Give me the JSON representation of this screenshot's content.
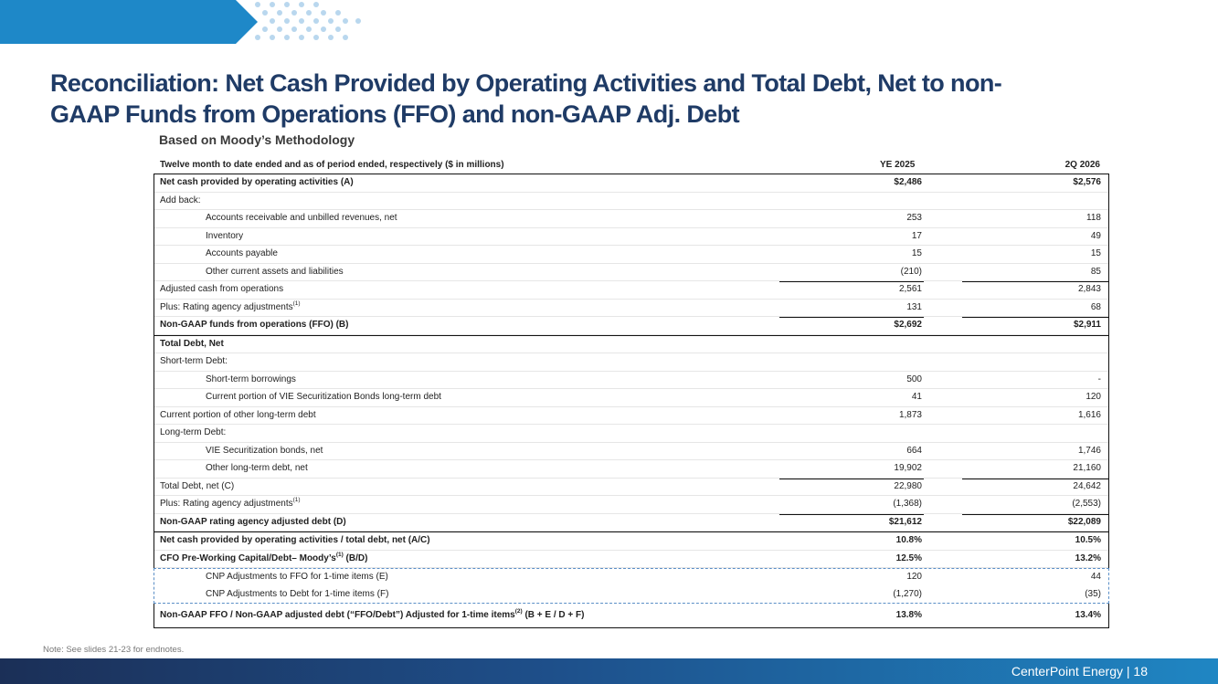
{
  "slide": {
    "title": "Reconciliation: Net Cash Provided by Operating Activities and Total Debt, Net to non-GAAP Funds from Operations (FFO) and non-GAAP Adj. Debt",
    "subtitle": "Based on Moody’s Methodology",
    "note": "Note: See slides 21-23 for endnotes.",
    "footer": "CenterPoint Energy | 18"
  },
  "colors": {
    "title": "#1f3b66",
    "banner": "#1e88c8",
    "footer_start": "#1b2f57",
    "footer_end": "#1f86c3",
    "dash": "#5b8fc7"
  },
  "table": {
    "header": {
      "label": "Twelve month to date ended and as of period ended, respectively ($ in millions)",
      "col1": "YE 2025",
      "col2": "2Q 2026"
    },
    "section1": [
      {
        "label": "Net cash provided by operating activities (A)",
        "v1": "$2,486",
        "v2": "$2,576"
      },
      {
        "label": "Add back:",
        "v1": "",
        "v2": ""
      },
      {
        "label": "Accounts receivable and unbilled revenues, net",
        "v1": "253",
        "v2": "118"
      },
      {
        "label": "Inventory",
        "v1": "17",
        "v2": "49"
      },
      {
        "label": "Accounts payable",
        "v1": "15",
        "v2": "15"
      },
      {
        "label": "Other current assets and liabilities",
        "v1": "(210)",
        "v2": "85"
      },
      {
        "label": "Adjusted cash from operations",
        "v1": "2,561",
        "v2": "2,843"
      },
      {
        "label": "Plus: Rating agency adjustments",
        "sup": "(1)",
        "v1": "131",
        "v2": "68"
      },
      {
        "label": "Non-GAAP funds from operations (FFO) (B)",
        "v1": "$2,692",
        "v2": "$2,911"
      }
    ],
    "section2": [
      {
        "label": "Total Debt, Net",
        "v1": "",
        "v2": ""
      },
      {
        "label": "Short-term Debt:",
        "v1": "",
        "v2": ""
      },
      {
        "label": "Short-term borrowings",
        "v1": "500",
        "v2": "-"
      },
      {
        "label": "Current portion of VIE Securitization Bonds long-term debt",
        "v1": "41",
        "v2": "120"
      },
      {
        "label": "Current portion of other long-term debt",
        "v1": "1,873",
        "v2": "1,616"
      },
      {
        "label": "Long-term Debt:",
        "v1": "",
        "v2": ""
      },
      {
        "label": "VIE Securitization bonds, net",
        "v1": "664",
        "v2": "1,746"
      },
      {
        "label": "Other long-term debt, net",
        "v1": "19,902",
        "v2": "21,160"
      },
      {
        "label": "Total Debt, net (C)",
        "v1": "22,980",
        "v2": "24,642"
      },
      {
        "label": "Plus: Rating agency adjustments",
        "sup": "(1)",
        "v1": "(1,368)",
        "v2": "(2,553)"
      },
      {
        "label": "Non-GAAP rating agency adjusted debt (D)",
        "v1": "$21,612",
        "v2": "$22,089"
      }
    ],
    "ratio1": {
      "label": "Net cash provided by operating activities / total debt, net (A/C)",
      "v1": "10.8%",
      "v2": "10.5%"
    },
    "ratio2": {
      "label": "CFO Pre-Working Capital/Debt– Moody’s",
      "sup": "(1)",
      "label_tail": " (B/D)",
      "v1": "12.5%",
      "v2": "13.2%"
    },
    "adjustments": [
      {
        "label": "CNP Adjustments to FFO for 1-time items (E)",
        "v1": "120",
        "v2": "44"
      },
      {
        "label": "CNP Adjustments to Debt for 1-time items (F)",
        "v1": "(1,270)",
        "v2": "(35)"
      }
    ],
    "final": {
      "label": "Non-GAAP FFO / Non-GAAP adjusted debt (“FFO/Debt”) Adjusted for 1-time items",
      "sup": "(2)",
      "label_tail": " (B + E / D + F)",
      "v1": "13.8%",
      "v2": "13.4%"
    }
  }
}
